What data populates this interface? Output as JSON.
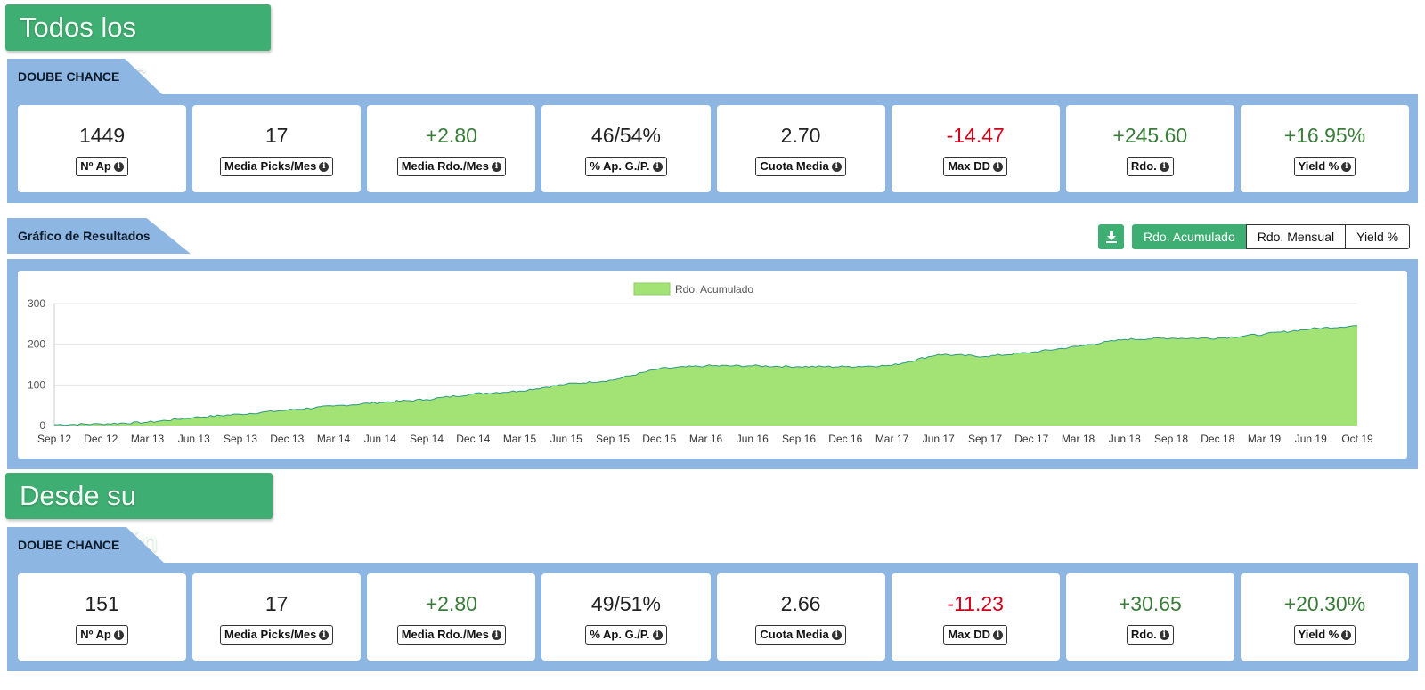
{
  "section1": {
    "banner": "Todos los resultados",
    "tab_label": "DOUBE CHANCE",
    "stats": [
      {
        "value": "1449",
        "label": "Nº Ap",
        "tone": "neutral"
      },
      {
        "value": "17",
        "label": "Media Picks/Mes",
        "tone": "neutral"
      },
      {
        "value": "+2.80",
        "label": "Media Rdo./Mes",
        "tone": "pos"
      },
      {
        "value": "46/54%",
        "label": "% Ap. G./P.",
        "tone": "neutral"
      },
      {
        "value": "2.70",
        "label": "Cuota Media",
        "tone": "neutral"
      },
      {
        "value": "-14.47",
        "label": "Max DD",
        "tone": "neg"
      },
      {
        "value": "+245.60",
        "label": "Rdo.",
        "tone": "pos"
      },
      {
        "value": "+16.95%",
        "label": "Yield %",
        "tone": "pos"
      }
    ]
  },
  "chart_section": {
    "tab_label": "Gráfico de Resultados",
    "download_icon": "download-icon",
    "buttons": [
      "Rdo. Acumulado",
      "Rdo. Mensual",
      "Yield %"
    ],
    "active_button": "Rdo. Acumulado"
  },
  "section2": {
    "banner": "Desde su publicación",
    "tab_label": "DOUBE CHANCE",
    "stats": [
      {
        "value": "151",
        "label": "Nº Ap",
        "tone": "neutral"
      },
      {
        "value": "17",
        "label": "Media Picks/Mes",
        "tone": "neutral"
      },
      {
        "value": "+2.80",
        "label": "Media Rdo./Mes",
        "tone": "pos"
      },
      {
        "value": "49/51%",
        "label": "% Ap. G./P.",
        "tone": "neutral"
      },
      {
        "value": "2.66",
        "label": "Cuota Media",
        "tone": "neutral"
      },
      {
        "value": "-11.23",
        "label": "Max DD",
        "tone": "neg"
      },
      {
        "value": "+30.65",
        "label": "Rdo.",
        "tone": "pos"
      },
      {
        "value": "+20.30%",
        "label": "Yield %",
        "tone": "pos"
      }
    ]
  },
  "colors": {
    "banner_green": "#3fae72",
    "panel_blue": "#8eb6e3",
    "area_fill": "#a3e274",
    "area_line": "#2a9a86",
    "positive": "#3a7d3a",
    "negative": "#d0021b"
  },
  "chart_data": {
    "type": "area",
    "legend": [
      "Rdo. Acumulado"
    ],
    "legend_position": "top-center",
    "grid": true,
    "ylim": [
      0,
      300
    ],
    "yticks": [
      0,
      100,
      200,
      300
    ],
    "xticks": [
      "Sep 12",
      "Dec 12",
      "Mar 13",
      "Jun 13",
      "Sep 13",
      "Dec 13",
      "Mar 14",
      "Jun 14",
      "Sep 14",
      "Dec 14",
      "Mar 15",
      "Jun 15",
      "Sep 15",
      "Dec 15",
      "Mar 16",
      "Jun 16",
      "Sep 16",
      "Dec 16",
      "Mar 17",
      "Jun 17",
      "Sep 17",
      "Dec 17",
      "Mar 18",
      "Jun 18",
      "Sep 18",
      "Dec 18",
      "Mar 19",
      "Jun 19",
      "Oct 19"
    ],
    "series": [
      {
        "name": "Rdo. Acumulado",
        "x": [
          "Sep 12",
          "Dec 12",
          "Mar 13",
          "Jun 13",
          "Sep 13",
          "Dec 13",
          "Mar 14",
          "Jun 14",
          "Sep 14",
          "Dec 14",
          "Mar 15",
          "Jun 15",
          "Sep 15",
          "Dec 15",
          "Mar 16",
          "Jun 16",
          "Sep 16",
          "Dec 16",
          "Mar 17",
          "Jun 17",
          "Sep 17",
          "Dec 17",
          "Mar 18",
          "Jun 18",
          "Sep 18",
          "Dec 18",
          "Mar 19",
          "Jun 19",
          "Oct 19"
        ],
        "values": [
          2,
          4,
          8,
          20,
          28,
          38,
          48,
          57,
          64,
          78,
          85,
          102,
          112,
          140,
          147,
          147,
          145,
          145,
          148,
          175,
          170,
          180,
          195,
          212,
          215,
          215,
          225,
          238,
          246
        ]
      }
    ]
  }
}
